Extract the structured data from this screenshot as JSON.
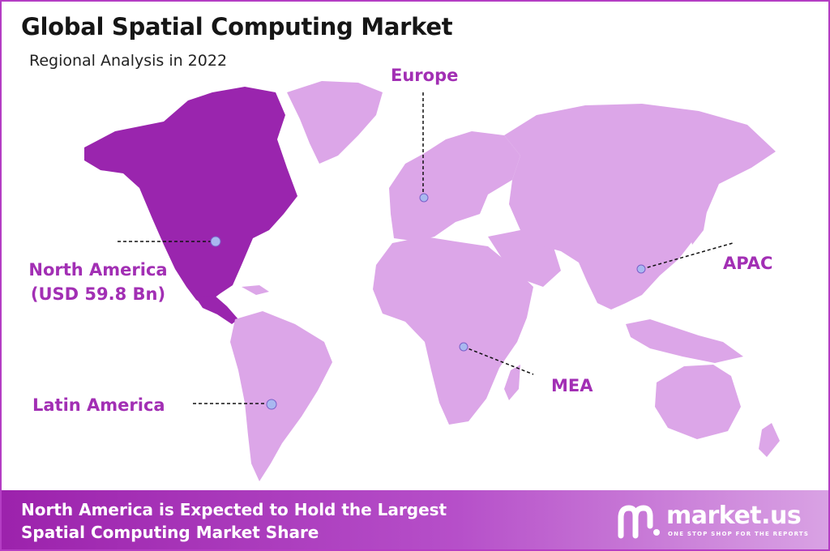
{
  "title": "Global Spatial Computing Market",
  "subtitle": "Regional Analysis in 2022",
  "regions": {
    "north_america": {
      "name": "North America",
      "value": "(USD 59.8 Bn)",
      "highlighted": true
    },
    "europe": {
      "name": "Europe"
    },
    "apac": {
      "name": "APAC"
    },
    "mea": {
      "name": "MEA"
    },
    "latin_america": {
      "name": "Latin America"
    }
  },
  "colors": {
    "highlight": "#9a25ae",
    "land": "#dca6e8",
    "label": "#a22fb4",
    "marker": "#a9b8f0"
  },
  "footer": {
    "line1": "North America is Expected to Hold the Largest",
    "line2": "Spatial Computing Market Share"
  },
  "logo": {
    "name": "market.us",
    "tagline": "ONE STOP SHOP FOR THE REPORTS",
    "icon": "market-us-logo-icon"
  }
}
